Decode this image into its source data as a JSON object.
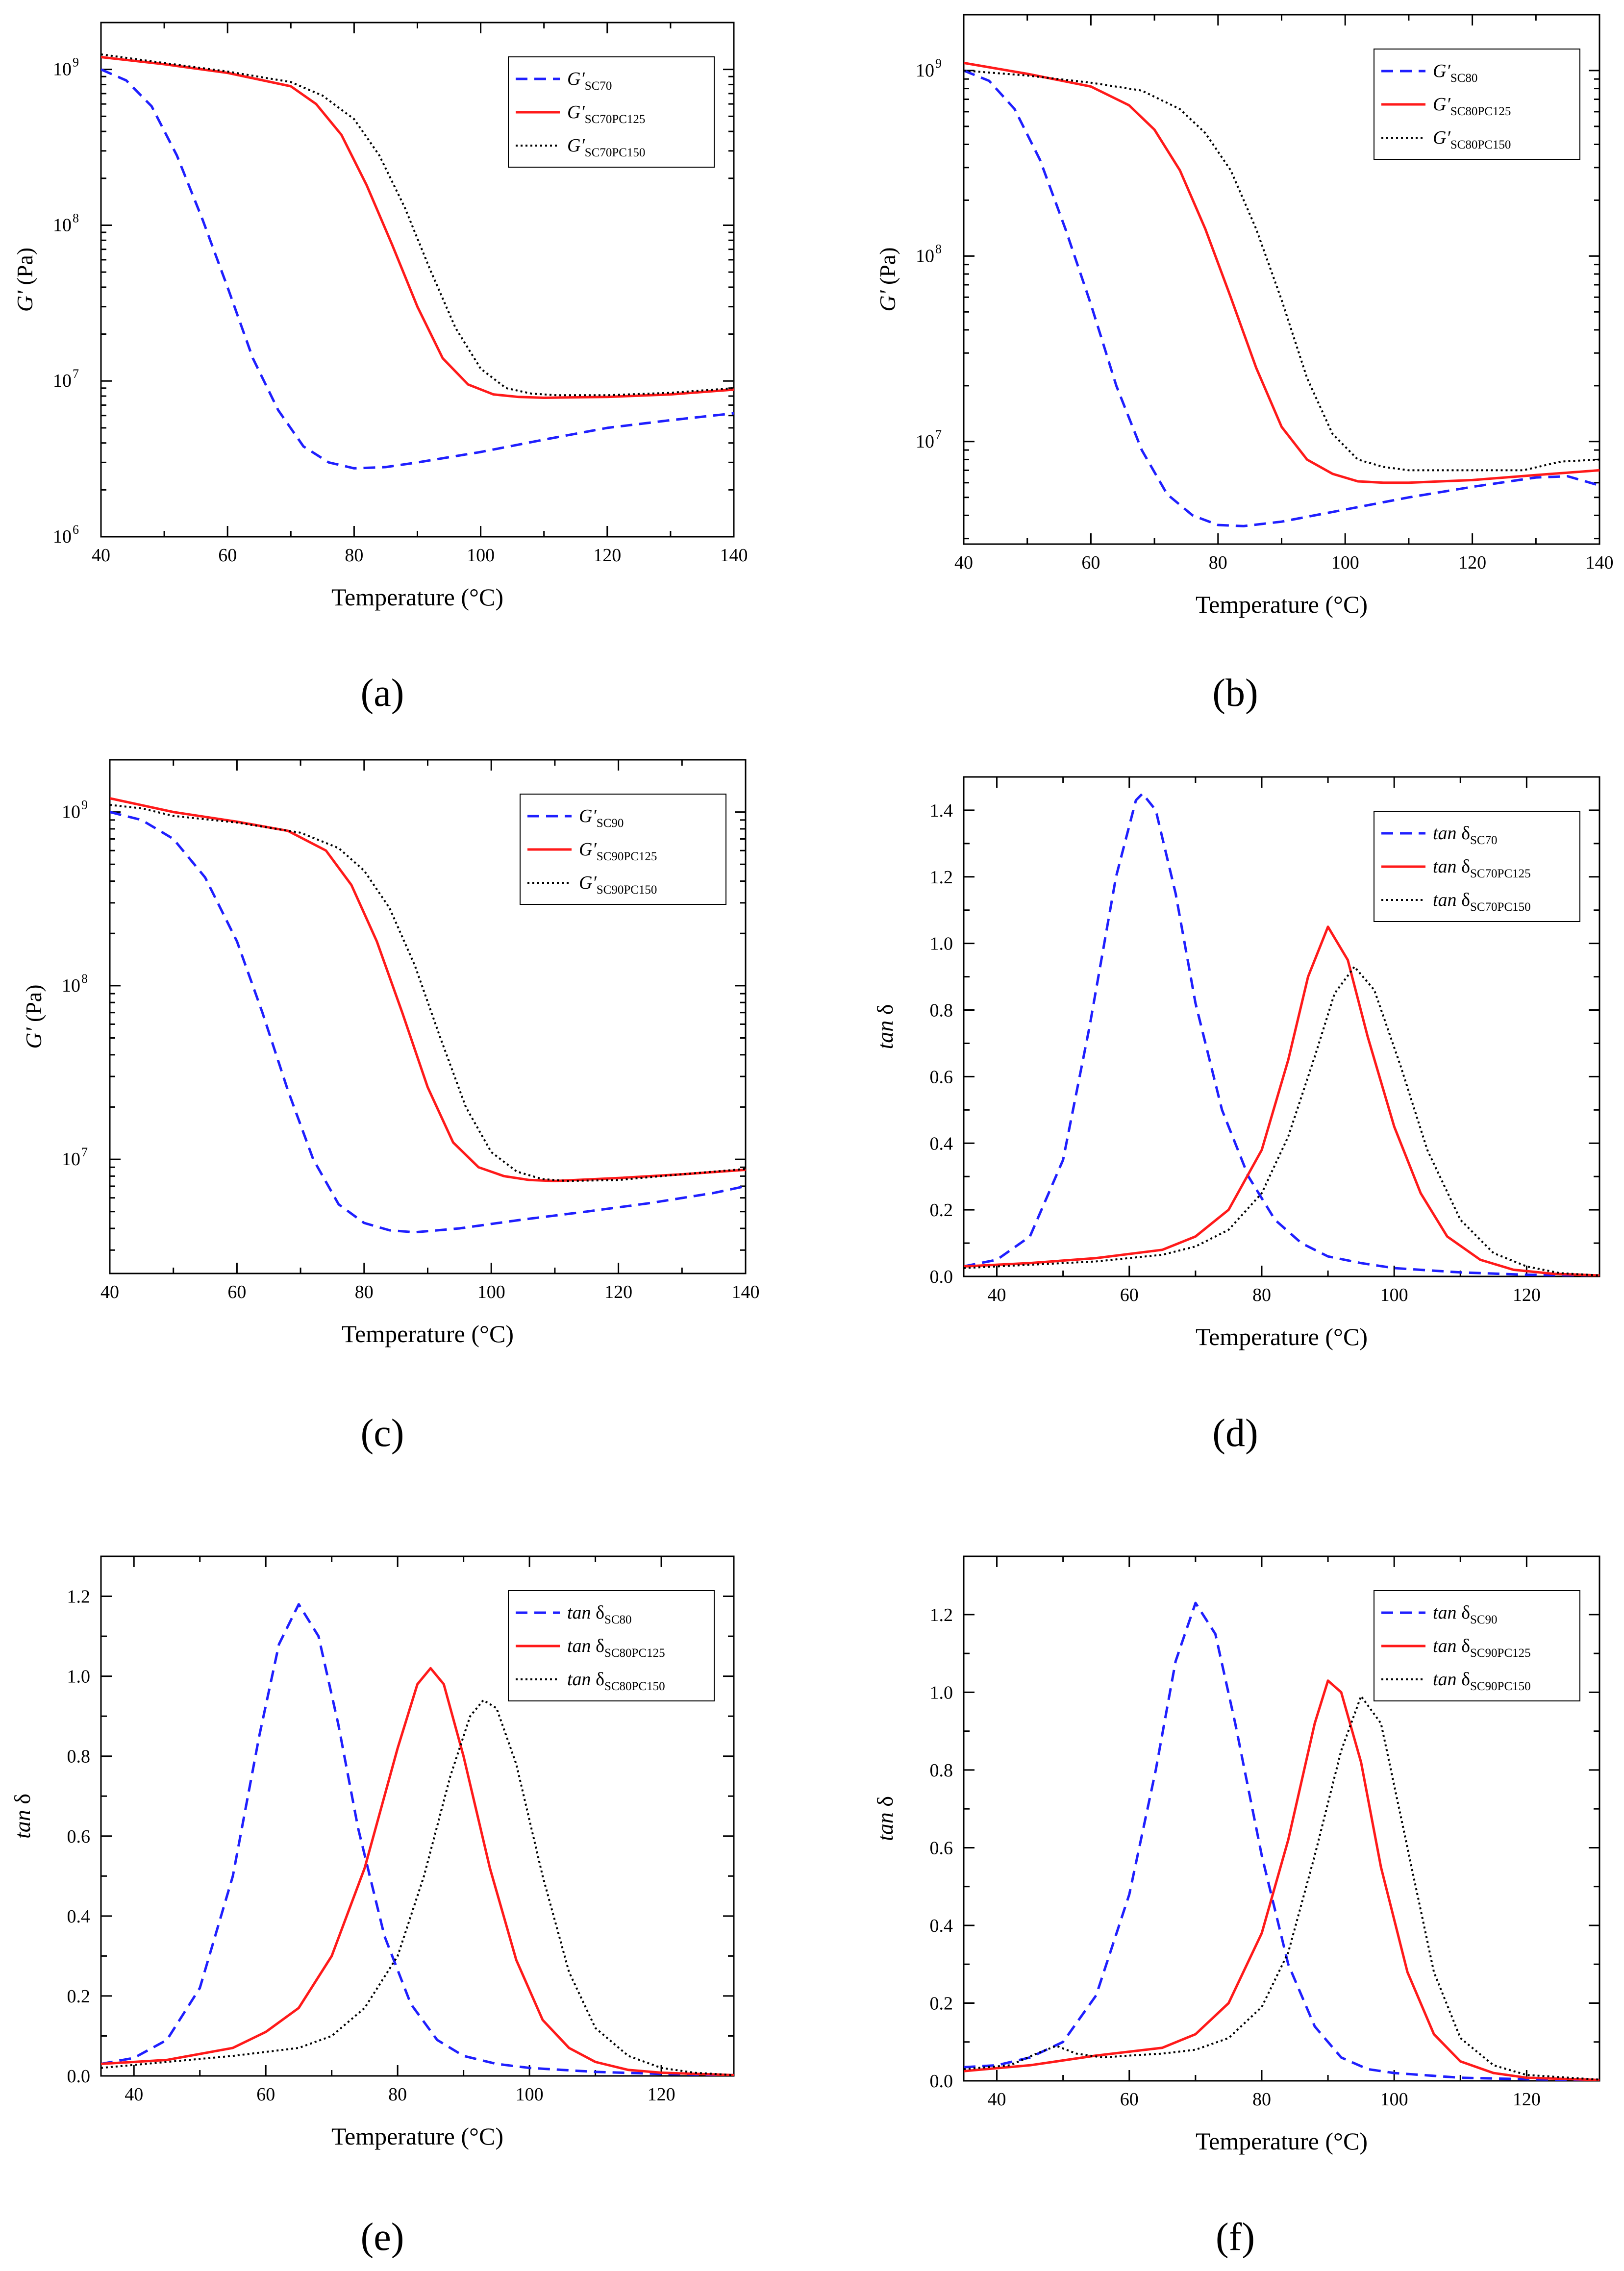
{
  "series_styles": [
    {
      "color": "#1f1fff",
      "dash": "24,14",
      "width": 5
    },
    {
      "color": "#ff1a1a",
      "dash": "",
      "width": 5
    },
    {
      "color": "#000000",
      "dash": "4,6",
      "width": 4
    }
  ],
  "chart_data": [
    {
      "panel_label": "(a)",
      "type": "line",
      "xlabel": "Temperature (°C)",
      "ylabel": "G' (Pa)",
      "ylabel_italic": "G'",
      "ylabel_rest": " (Pa)",
      "yscale": "log",
      "xlim": [
        40,
        140
      ],
      "ylim": [
        1000000,
        2000000000
      ],
      "xticks": [
        40,
        60,
        80,
        100,
        120,
        140
      ],
      "ytick_exponents": [
        6,
        7,
        8,
        9
      ],
      "legend_position": "top-right",
      "series": [
        {
          "name": "G′SC70",
          "name_main": "G′",
          "name_sub": "SC70",
          "x": [
            40,
            44,
            48,
            52,
            56,
            60,
            64,
            68,
            72,
            76,
            80,
            85,
            90,
            100,
            110,
            120,
            130,
            140
          ],
          "y": [
            1000000000,
            850000000,
            580000000,
            280000000,
            110000000,
            40000000,
            14000000,
            6500000,
            3800000,
            3000000,
            2750000,
            2800000,
            3000000,
            3500000,
            4200000,
            5000000,
            5600000,
            6200000
          ]
        },
        {
          "name": "G′SC70PC125",
          "name_main": "G′",
          "name_sub": "SC70PC125",
          "x": [
            40,
            50,
            60,
            70,
            74,
            78,
            82,
            86,
            90,
            94,
            98,
            102,
            106,
            110,
            120,
            130,
            140
          ],
          "y": [
            1200000000,
            1080000000,
            950000000,
            780000000,
            600000000,
            380000000,
            180000000,
            75000000,
            30000000,
            14000000,
            9500000,
            8200000,
            7900000,
            7800000,
            7900000,
            8200000,
            8800000
          ]
        },
        {
          "name": "G′SC70PC150",
          "name_main": "G′",
          "name_sub": "SC70PC150",
          "x": [
            40,
            50,
            60,
            70,
            75,
            80,
            84,
            88,
            92,
            96,
            100,
            104,
            108,
            112,
            120,
            130,
            140
          ],
          "y": [
            1250000000,
            1100000000,
            970000000,
            830000000,
            680000000,
            480000000,
            280000000,
            130000000,
            52000000,
            22000000,
            12000000,
            9000000,
            8300000,
            8100000,
            8100000,
            8400000,
            9000000
          ]
        }
      ]
    },
    {
      "panel_label": "(b)",
      "type": "line",
      "xlabel": "Temperature (°C)",
      "ylabel": "G' (Pa)",
      "ylabel_italic": "G'",
      "ylabel_rest": " (Pa)",
      "yscale": "log",
      "xlim": [
        40,
        140
      ],
      "ylim": [
        2800000,
        2000000000
      ],
      "xticks": [
        40,
        60,
        80,
        100,
        120,
        140
      ],
      "ytick_exponents": [
        7,
        8,
        9
      ],
      "legend_position": "top-right",
      "series": [
        {
          "name": "G′SC80",
          "name_main": "G′",
          "name_sub": "SC80",
          "x": [
            40,
            44,
            48,
            52,
            56,
            60,
            64,
            68,
            72,
            76,
            80,
            84,
            90,
            100,
            110,
            120,
            130,
            135,
            140
          ],
          "y": [
            1000000000,
            880000000,
            620000000,
            330000000,
            140000000,
            55000000,
            20000000,
            9000000,
            5200000,
            4000000,
            3550000,
            3500000,
            3700000,
            4300000,
            5000000,
            5700000,
            6400000,
            6500000,
            5800000
          ]
        },
        {
          "name": "G′SC80PC125",
          "name_main": "G′",
          "name_sub": "SC80PC125",
          "x": [
            40,
            50,
            60,
            66,
            70,
            74,
            78,
            82,
            86,
            90,
            94,
            98,
            102,
            106,
            110,
            120,
            130,
            140
          ],
          "y": [
            1100000000,
            960000000,
            820000000,
            650000000,
            480000000,
            290000000,
            140000000,
            60000000,
            25000000,
            12000000,
            8000000,
            6700000,
            6100000,
            6000000,
            6000000,
            6200000,
            6600000,
            7000000
          ]
        },
        {
          "name": "G′SC80PC150",
          "name_main": "G′",
          "name_sub": "SC80PC150",
          "x": [
            40,
            50,
            60,
            68,
            74,
            78,
            82,
            86,
            90,
            94,
            98,
            102,
            106,
            110,
            120,
            128,
            134,
            140
          ],
          "y": [
            1000000000,
            940000000,
            860000000,
            780000000,
            620000000,
            460000000,
            290000000,
            140000000,
            58000000,
            22000000,
            11000000,
            8000000,
            7300000,
            7000000,
            7000000,
            7000000,
            7800000,
            8000000
          ]
        }
      ]
    },
    {
      "panel_label": "(c)",
      "type": "line",
      "xlabel": "Temperature (°C)",
      "ylabel": "G' (Pa)",
      "ylabel_italic": "G'",
      "ylabel_rest": " (Pa)",
      "yscale": "log",
      "xlim": [
        40,
        140
      ],
      "ylim": [
        2200000,
        2000000000
      ],
      "xticks": [
        40,
        60,
        80,
        100,
        120,
        140
      ],
      "ytick_exponents": [
        7,
        8,
        9
      ],
      "legend_position": "top-right",
      "series": [
        {
          "name": "G′SC90",
          "name_main": "G′",
          "name_sub": "SC90",
          "x": [
            40,
            45,
            50,
            55,
            60,
            64,
            68,
            72,
            76,
            80,
            84,
            88,
            95,
            105,
            115,
            125,
            135,
            140
          ],
          "y": [
            1000000000,
            900000000,
            700000000,
            420000000,
            180000000,
            70000000,
            25000000,
            10000000,
            5500000,
            4300000,
            3900000,
            3800000,
            4000000,
            4500000,
            5000000,
            5600000,
            6400000,
            7000000
          ]
        },
        {
          "name": "G′SC90PC125",
          "name_main": "G′",
          "name_sub": "SC90PC125",
          "x": [
            40,
            50,
            60,
            68,
            74,
            78,
            82,
            86,
            90,
            94,
            98,
            102,
            106,
            110,
            120,
            130,
            140
          ],
          "y": [
            1200000000,
            1000000000,
            880000000,
            780000000,
            600000000,
            380000000,
            180000000,
            70000000,
            26000000,
            12500000,
            9000000,
            8000000,
            7600000,
            7500000,
            7800000,
            8200000,
            8700000
          ]
        },
        {
          "name": "G′SC90PC150",
          "name_main": "G′",
          "name_sub": "SC90PC150",
          "x": [
            40,
            45,
            50,
            60,
            70,
            76,
            80,
            84,
            88,
            92,
            96,
            100,
            104,
            108,
            112,
            120,
            130,
            140
          ],
          "y": [
            1100000000,
            1050000000,
            950000000,
            870000000,
            760000000,
            620000000,
            460000000,
            280000000,
            130000000,
            50000000,
            20000000,
            11000000,
            8500000,
            7700000,
            7500000,
            7600000,
            8200000,
            8800000
          ]
        }
      ]
    },
    {
      "panel_label": "(d)",
      "type": "line",
      "xlabel": "Temperature (°C)",
      "ylabel": "tan δ",
      "ylabel_italic": "tan",
      "ylabel_rest": " δ",
      "yscale": "linear",
      "xlim": [
        35,
        131
      ],
      "ylim": [
        0,
        1.5
      ],
      "xticks": [
        40,
        60,
        80,
        100,
        120
      ],
      "yticks": [
        0.0,
        0.2,
        0.4,
        0.6,
        0.8,
        1.0,
        1.2,
        1.4
      ],
      "legend_position": "top-right",
      "series": [
        {
          "name": "tan δSC70",
          "name_main": "tan δ",
          "name_sub": "SC70",
          "x": [
            35,
            40,
            45,
            50,
            54,
            58,
            61,
            62,
            64,
            67,
            70,
            74,
            78,
            82,
            86,
            90,
            95,
            100,
            110,
            120,
            131
          ],
          "y": [
            0.03,
            0.05,
            0.12,
            0.35,
            0.75,
            1.2,
            1.43,
            1.45,
            1.4,
            1.15,
            0.82,
            0.5,
            0.3,
            0.17,
            0.1,
            0.06,
            0.04,
            0.025,
            0.012,
            0.005,
            0.002
          ]
        },
        {
          "name": "tan δSC70PC125",
          "name_main": "tan δ",
          "name_sub": "SC70PC125",
          "x": [
            35,
            45,
            55,
            65,
            70,
            75,
            80,
            84,
            87,
            90,
            93,
            96,
            100,
            104,
            108,
            113,
            118,
            124,
            131
          ],
          "y": [
            0.03,
            0.04,
            0.055,
            0.08,
            0.12,
            0.2,
            0.38,
            0.65,
            0.9,
            1.05,
            0.95,
            0.72,
            0.45,
            0.25,
            0.12,
            0.05,
            0.02,
            0.008,
            0.003
          ]
        },
        {
          "name": "tan δSC70PC150",
          "name_main": "tan δ",
          "name_sub": "SC70PC150",
          "x": [
            35,
            45,
            55,
            65,
            70,
            75,
            80,
            84,
            88,
            91,
            94,
            97,
            101,
            105,
            110,
            115,
            120,
            125,
            131
          ],
          "y": [
            0.025,
            0.035,
            0.045,
            0.065,
            0.09,
            0.14,
            0.25,
            0.42,
            0.66,
            0.85,
            0.93,
            0.86,
            0.63,
            0.38,
            0.17,
            0.07,
            0.03,
            0.01,
            0.003
          ]
        }
      ]
    },
    {
      "panel_label": "(e)",
      "type": "line",
      "xlabel": "Temperature (°C)",
      "ylabel": "tan δ",
      "ylabel_italic": "tan",
      "ylabel_rest": " δ",
      "yscale": "linear",
      "xlim": [
        35,
        131
      ],
      "ylim": [
        0,
        1.3
      ],
      "xticks": [
        40,
        60,
        80,
        100,
        120
      ],
      "yticks": [
        0.0,
        0.2,
        0.4,
        0.6,
        0.8,
        1.0,
        1.2
      ],
      "legend_position": "top-right",
      "series": [
        {
          "name": "tan δSC80",
          "name_main": "tan δ",
          "name_sub": "SC80",
          "x": [
            35,
            40,
            45,
            50,
            55,
            59,
            62,
            65,
            68,
            71,
            74,
            78,
            82,
            86,
            90,
            95,
            100,
            110,
            120,
            131
          ],
          "y": [
            0.03,
            0.045,
            0.09,
            0.22,
            0.5,
            0.85,
            1.08,
            1.18,
            1.1,
            0.88,
            0.62,
            0.35,
            0.18,
            0.09,
            0.05,
            0.03,
            0.02,
            0.01,
            0.005,
            0.002
          ]
        },
        {
          "name": "tan δSC80PC125",
          "name_main": "tan δ",
          "name_sub": "SC80PC125",
          "x": [
            35,
            45,
            55,
            60,
            65,
            70,
            75,
            80,
            83,
            85,
            87,
            90,
            94,
            98,
            102,
            106,
            110,
            115,
            120,
            131
          ],
          "y": [
            0.03,
            0.04,
            0.07,
            0.11,
            0.17,
            0.3,
            0.52,
            0.82,
            0.98,
            1.02,
            0.98,
            0.8,
            0.52,
            0.29,
            0.14,
            0.07,
            0.035,
            0.015,
            0.008,
            0.002
          ]
        },
        {
          "name": "tan δSC80PC150",
          "name_main": "tan δ",
          "name_sub": "SC80PC150",
          "x": [
            35,
            45,
            55,
            65,
            70,
            75,
            80,
            84,
            88,
            91,
            93,
            95,
            98,
            102,
            106,
            110,
            115,
            120,
            125,
            131
          ],
          "y": [
            0.02,
            0.035,
            0.05,
            0.07,
            0.1,
            0.17,
            0.3,
            0.5,
            0.75,
            0.9,
            0.94,
            0.92,
            0.78,
            0.5,
            0.26,
            0.12,
            0.05,
            0.02,
            0.008,
            0.002
          ]
        }
      ]
    },
    {
      "panel_label": "(f)",
      "type": "line",
      "xlabel": "Temperature (°C)",
      "ylabel": "tan δ",
      "ylabel_italic": "tan",
      "ylabel_rest": " δ",
      "yscale": "linear",
      "xlim": [
        35,
        131
      ],
      "ylim": [
        0,
        1.35
      ],
      "xticks": [
        40,
        60,
        80,
        100,
        120
      ],
      "yticks": [
        0.0,
        0.2,
        0.4,
        0.6,
        0.8,
        1.0,
        1.2
      ],
      "legend_position": "top-right",
      "series": [
        {
          "name": "tan δSC90",
          "name_main": "tan δ",
          "name_sub": "SC90",
          "x": [
            35,
            40,
            45,
            50,
            55,
            60,
            64,
            67,
            70,
            73,
            76,
            80,
            84,
            88,
            92,
            96,
            100,
            110,
            120,
            131
          ],
          "y": [
            0.035,
            0.04,
            0.06,
            0.1,
            0.22,
            0.48,
            0.8,
            1.08,
            1.23,
            1.15,
            0.92,
            0.58,
            0.3,
            0.14,
            0.06,
            0.03,
            0.02,
            0.008,
            0.004,
            0.002
          ]
        },
        {
          "name": "tan δSC90PC125",
          "name_main": "tan δ",
          "name_sub": "SC90PC125",
          "x": [
            35,
            45,
            55,
            65,
            70,
            75,
            80,
            84,
            88,
            90,
            92,
            95,
            98,
            102,
            106,
            110,
            115,
            120,
            131
          ],
          "y": [
            0.025,
            0.04,
            0.065,
            0.085,
            0.12,
            0.2,
            0.38,
            0.62,
            0.92,
            1.03,
            1.0,
            0.82,
            0.55,
            0.28,
            0.12,
            0.05,
            0.02,
            0.008,
            0.002
          ]
        },
        {
          "name": "tan δSC90PC150",
          "name_main": "tan δ",
          "name_sub": "SC90PC150",
          "x": [
            35,
            42,
            46,
            49,
            52,
            56,
            60,
            65,
            70,
            75,
            80,
            84,
            88,
            92,
            95,
            98,
            102,
            106,
            110,
            115,
            120,
            131
          ],
          "y": [
            0.03,
            0.04,
            0.07,
            0.09,
            0.07,
            0.06,
            0.065,
            0.07,
            0.08,
            0.11,
            0.19,
            0.33,
            0.58,
            0.85,
            0.99,
            0.92,
            0.6,
            0.28,
            0.11,
            0.04,
            0.015,
            0.003
          ]
        }
      ]
    }
  ]
}
